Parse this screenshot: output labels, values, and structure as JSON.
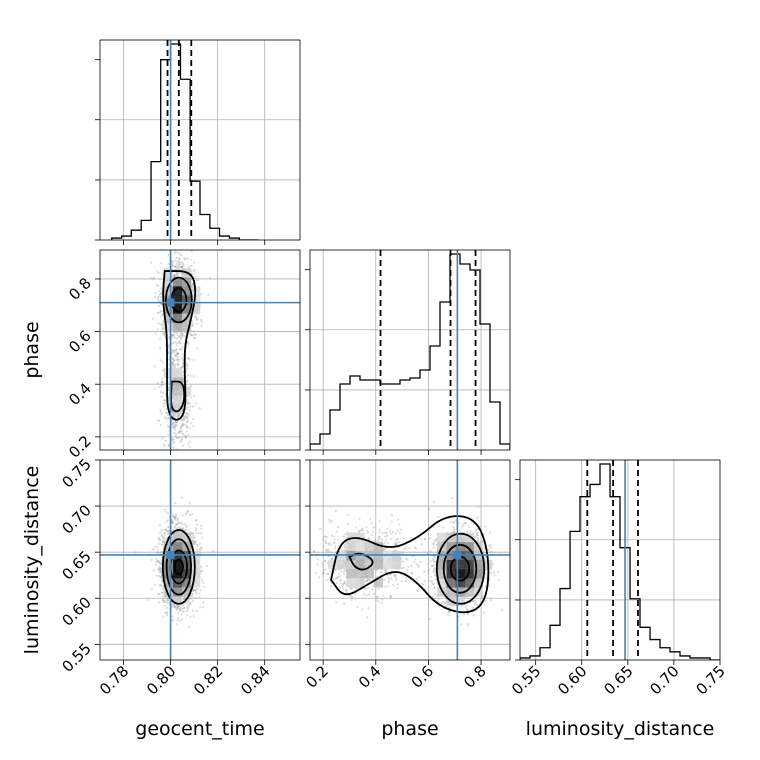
{
  "chart_data": {
    "type": "corner",
    "parameters": [
      "geocent_time",
      "phase",
      "luminosity_distance"
    ],
    "truth_color": "#4682b4",
    "truths": {
      "geocent_time": 0.8,
      "phase": 0.71,
      "luminosity_distance": 0.647
    },
    "axes": {
      "geocent_time": {
        "range": [
          0.77,
          0.855
        ],
        "ticks": [
          0.78,
          0.8,
          0.82,
          0.84
        ],
        "tick_labels": [
          "0.78",
          "0.80",
          "0.82",
          "0.84"
        ]
      },
      "phase": {
        "range": [
          0.15,
          0.91
        ],
        "ticks": [
          0.2,
          0.4,
          0.6,
          0.8
        ],
        "tick_labels": [
          "0.2",
          "0.4",
          "0.6",
          "0.8"
        ]
      },
      "luminosity_distance": {
        "range": [
          0.533,
          0.75
        ],
        "ticks": [
          0.55,
          0.6,
          0.65,
          0.7,
          0.75
        ],
        "tick_labels": [
          "0.55",
          "0.60",
          "0.65",
          "0.70",
          "0.75"
        ]
      }
    },
    "histograms": {
      "geocent_time": {
        "edges": [
          0.775,
          0.7792,
          0.7833,
          0.7875,
          0.7917,
          0.7958,
          0.8,
          0.8042,
          0.8083,
          0.8125,
          0.8167,
          0.8208,
          0.825,
          0.8292,
          0.8333,
          0.8375
        ],
        "counts": [
          1,
          2,
          5,
          10,
          40,
          92,
          100,
          82,
          30,
          13,
          6,
          2,
          1,
          0,
          0
        ],
        "quantiles": [
          0.7987,
          0.8035,
          0.8088
        ]
      },
      "phase": {
        "edges": [
          0.15,
          0.188,
          0.226,
          0.264,
          0.302,
          0.34,
          0.378,
          0.416,
          0.454,
          0.492,
          0.53,
          0.568,
          0.606,
          0.644,
          0.682,
          0.72,
          0.758,
          0.796,
          0.834,
          0.872,
          0.91
        ],
        "counts": [
          3,
          8,
          20,
          33,
          37,
          35,
          35,
          33,
          33,
          35,
          36,
          40,
          52,
          74,
          98,
          93,
          90,
          63,
          24,
          3
        ],
        "quantiles": [
          0.418,
          0.684,
          0.779
        ]
      },
      "luminosity_distance": {
        "edges": [
          0.533,
          0.5439,
          0.5547,
          0.5656,
          0.5764,
          0.5873,
          0.5981,
          0.609,
          0.6198,
          0.6307,
          0.6415,
          0.6524,
          0.6632,
          0.6741,
          0.6849,
          0.6958,
          0.7066,
          0.7175,
          0.7283,
          0.7392,
          0.75
        ],
        "counts": [
          1,
          2,
          6,
          17,
          35,
          63,
          80,
          86,
          96,
          80,
          55,
          30,
          16,
          10,
          6,
          4,
          2,
          1,
          1,
          0
        ],
        "quantiles": [
          0.606,
          0.634,
          0.661
        ]
      }
    },
    "grid": true
  }
}
